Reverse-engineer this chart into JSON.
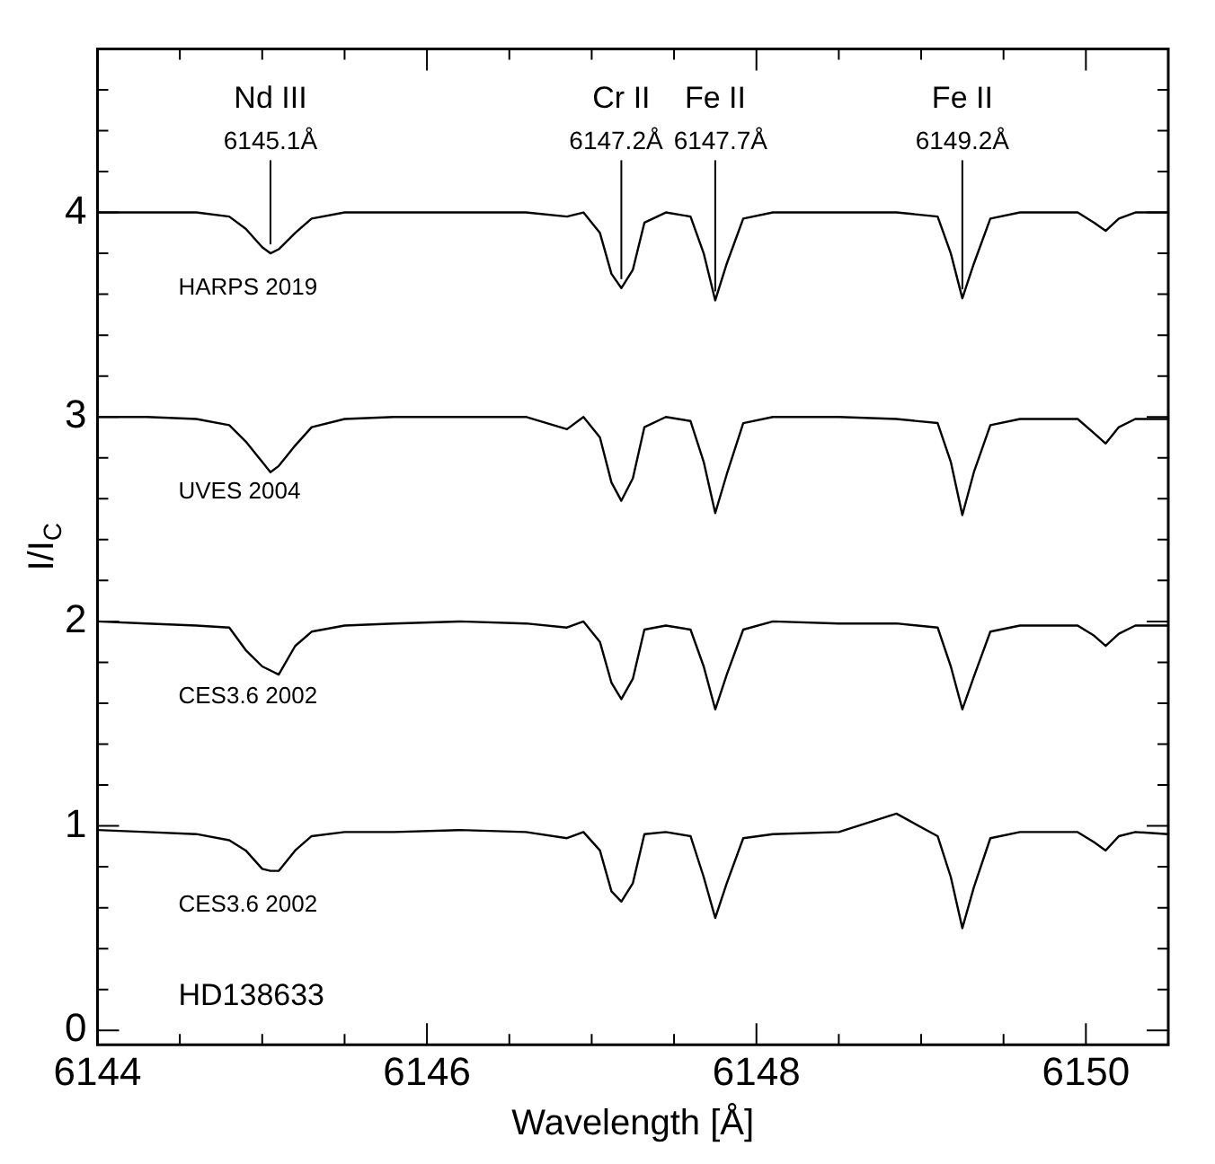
{
  "chart_data": {
    "type": "line",
    "xlabel": "Wavelength [Å]",
    "ylabel": "I/I$_{C}$",
    "xlim": [
      6144,
      6150.5
    ],
    "ylim": [
      -0.07,
      4.8
    ],
    "xticks": [
      6144,
      {
        "value": 6144.5,
        "label": null
      },
      {
        "value": 6145,
        "label": null
      },
      {
        "value": 6145.5,
        "label": null
      },
      6146,
      {
        "value": 6146.5,
        "label": null
      },
      {
        "value": 6147,
        "label": null
      },
      {
        "value": 6147.5,
        "label": null
      },
      6148,
      {
        "value": 6148.5,
        "label": null
      },
      {
        "value": 6149,
        "label": null
      },
      {
        "value": 6149.5,
        "label": null
      },
      6150
    ],
    "yticks": [
      0,
      {
        "value": 0.2,
        "label": null
      },
      {
        "value": 0.4,
        "label": null
      },
      {
        "value": 0.6,
        "label": null
      },
      {
        "value": 0.8,
        "label": null
      },
      1,
      {
        "value": 1.2,
        "label": null
      },
      {
        "value": 1.4,
        "label": null
      },
      {
        "value": 1.6,
        "label": null
      },
      {
        "value": 1.8,
        "label": null
      },
      2,
      {
        "value": 2.2,
        "label": null
      },
      {
        "value": 2.4,
        "label": null
      },
      {
        "value": 2.6,
        "label": null
      },
      {
        "value": 2.8,
        "label": null
      },
      3,
      {
        "value": 3.2,
        "label": null
      },
      {
        "value": 3.4,
        "label": null
      },
      {
        "value": 3.6,
        "label": null
      },
      {
        "value": 3.8,
        "label": null
      },
      4,
      {
        "value": 4.2,
        "label": null
      },
      {
        "value": 4.4,
        "label": null
      },
      {
        "value": 4.6,
        "label": null
      }
    ],
    "grid": false,
    "legend": false,
    "marker": "none",
    "line_style": "solid",
    "x": [
      6144.0,
      6144.3,
      6144.6,
      6144.8,
      6144.9,
      6145.0,
      6145.05,
      6145.1,
      6145.2,
      6145.3,
      6145.5,
      6145.8,
      6146.2,
      6146.6,
      6146.85,
      6146.95,
      6147.05,
      6147.12,
      6147.18,
      6147.25,
      6147.32,
      6147.45,
      6147.6,
      6147.68,
      6147.75,
      6147.82,
      6147.92,
      6148.1,
      6148.5,
      6148.85,
      6149.1,
      6149.18,
      6149.25,
      6149.32,
      6149.42,
      6149.6,
      6149.95,
      6150.05,
      6150.12,
      6150.2,
      6150.3,
      6150.5
    ],
    "series": [
      {
        "name": "HARPS 2019",
        "color": "#000000",
        "values": [
          4.0,
          4.0,
          4.0,
          3.98,
          3.92,
          3.83,
          3.8,
          3.82,
          3.9,
          3.97,
          4.0,
          4.0,
          4.0,
          4.0,
          3.98,
          4.0,
          3.9,
          3.7,
          3.63,
          3.72,
          3.95,
          4.0,
          3.98,
          3.8,
          3.57,
          3.75,
          3.97,
          4.0,
          4.0,
          4.0,
          3.98,
          3.8,
          3.58,
          3.75,
          3.97,
          4.0,
          4.0,
          3.95,
          3.91,
          3.97,
          4.0,
          4.0
        ]
      },
      {
        "name": "UVES 2004",
        "color": "#000000",
        "values": [
          3.0,
          3.0,
          2.99,
          2.96,
          2.88,
          2.78,
          2.73,
          2.76,
          2.86,
          2.95,
          2.99,
          3.0,
          3.0,
          3.0,
          2.94,
          3.0,
          2.9,
          2.68,
          2.59,
          2.7,
          2.95,
          3.0,
          2.98,
          2.78,
          2.53,
          2.72,
          2.97,
          3.0,
          3.0,
          2.99,
          2.97,
          2.78,
          2.52,
          2.73,
          2.96,
          2.99,
          2.99,
          2.92,
          2.87,
          2.95,
          2.99,
          2.99
        ]
      },
      {
        "name": "CES3.6 2002",
        "color": "#000000",
        "values": [
          2.0,
          1.99,
          1.98,
          1.97,
          1.86,
          1.78,
          1.76,
          1.74,
          1.88,
          1.95,
          1.98,
          1.99,
          2.0,
          1.99,
          1.97,
          2.0,
          1.9,
          1.7,
          1.62,
          1.72,
          1.96,
          1.98,
          1.96,
          1.78,
          1.57,
          1.74,
          1.96,
          2.0,
          1.99,
          1.99,
          1.97,
          1.78,
          1.57,
          1.73,
          1.95,
          1.98,
          1.98,
          1.93,
          1.88,
          1.94,
          1.98,
          1.98
        ]
      },
      {
        "name": "CES3.6 2002",
        "color": "#000000",
        "values": [
          0.98,
          0.97,
          0.96,
          0.93,
          0.88,
          0.79,
          0.78,
          0.78,
          0.88,
          0.95,
          0.97,
          0.97,
          0.98,
          0.97,
          0.94,
          0.97,
          0.88,
          0.68,
          0.63,
          0.72,
          0.96,
          0.97,
          0.95,
          0.75,
          0.55,
          0.72,
          0.94,
          0.96,
          0.97,
          1.06,
          0.95,
          0.75,
          0.5,
          0.7,
          0.94,
          0.97,
          0.97,
          0.92,
          0.88,
          0.95,
          0.97,
          0.96
        ]
      }
    ],
    "annotations": [
      {
        "text": "6145.1Å",
        "x": 6145.05,
        "y": 3.8
      },
      {
        "text": "6147.2Å",
        "x": 6147.18,
        "y": 3.63
      },
      {
        "text": "6147.7Å",
        "x": 6147.75,
        "y": 3.57
      },
      {
        "text": "6149.2Å",
        "x": 6149.25,
        "y": 3.58
      },
      "Nd III",
      "Cr II",
      "Fe II",
      "Fe II",
      "HD138633"
    ]
  }
}
